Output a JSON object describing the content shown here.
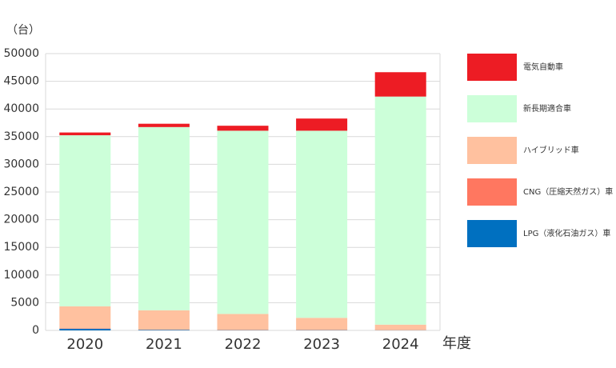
{
  "chart_data": {
    "type": "stacked_bar",
    "y_unit_label": "（台）",
    "x_label": "年度",
    "categories": [
      "2020",
      "2021",
      "2022",
      "2023",
      "2024"
    ],
    "series": [
      {
        "name": "LPG（液化石油ガス）車",
        "color": "#0070c0",
        "values": [
          300,
          100,
          50,
          50,
          30
        ]
      },
      {
        "name": "CNG（圧縮天然ガス）車",
        "color": "#ff7760",
        "values": [
          50,
          30,
          20,
          20,
          10
        ]
      },
      {
        "name": "ハイブリッド車",
        "color": "#ffc19f",
        "values": [
          4000,
          3500,
          2900,
          2200,
          1000
        ]
      },
      {
        "name": "新長期適合車",
        "color": "#ccffd9",
        "values": [
          30900,
          33100,
          33100,
          33800,
          41200
        ]
      },
      {
        "name": "電気自動車",
        "color": "#ed1c24",
        "values": [
          500,
          600,
          900,
          2200,
          4400
        ]
      }
    ],
    "ylim": [
      0,
      50000
    ],
    "yticks": [
      0,
      5000,
      10000,
      15000,
      20000,
      25000,
      30000,
      35000,
      40000,
      45000,
      50000
    ],
    "grid": true,
    "legend": "right"
  }
}
